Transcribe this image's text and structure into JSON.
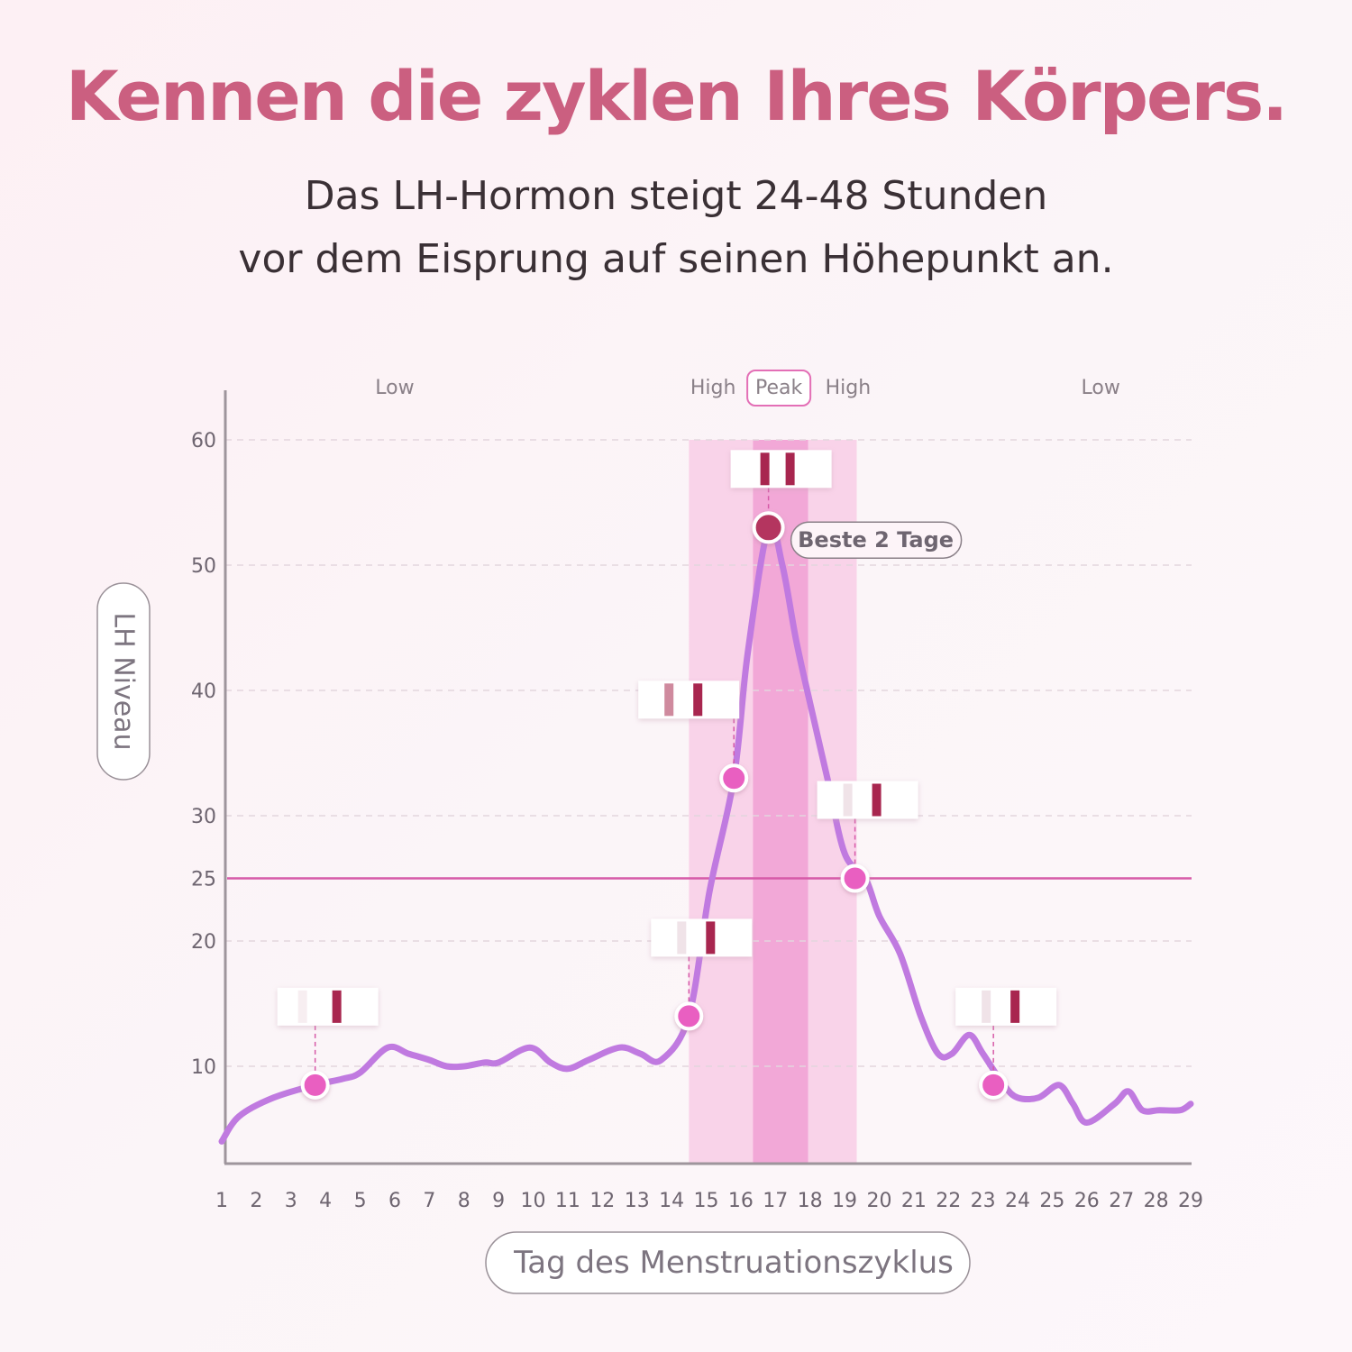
{
  "header": {
    "title": "Kennen die zyklen Ihres Körpers.",
    "subtitle_line1": "Das LH-Hormon steigt 24-48 Stunden",
    "subtitle_line2": "vor dem Eisprung auf seinen Höhepunkt an."
  },
  "chart_data": {
    "type": "line",
    "title": "",
    "xlabel": "Tag des Menstruationszyklus",
    "ylabel": "LH Niveau",
    "xlim": [
      1,
      29
    ],
    "ylim": [
      2,
      64
    ],
    "x_ticks": [
      1,
      2,
      3,
      4,
      5,
      6,
      7,
      8,
      9,
      10,
      11,
      12,
      13,
      14,
      15,
      16,
      17,
      18,
      19,
      20,
      21,
      22,
      23,
      24,
      25,
      26,
      27,
      28,
      29
    ],
    "y_ticks": [
      10,
      20,
      25,
      30,
      40,
      50,
      60
    ],
    "grid": true,
    "threshold": {
      "value": 25,
      "color": "#d65aa8"
    },
    "series": [
      {
        "color": "#c07ae0",
        "x": [
          1,
          1.5,
          2.5,
          3.7,
          4.5,
          5,
          5.8,
          6.4,
          7,
          7.5,
          8,
          8.6,
          9,
          9.9,
          10.5,
          11,
          11.6,
          12.5,
          13.1,
          13.7,
          14.5,
          15.1,
          15.8,
          16.2,
          16.8,
          17.2,
          17.6,
          18,
          18.5,
          19,
          19.6,
          20,
          20.6,
          21.2,
          21.7,
          22.1,
          22.6,
          23,
          23.6,
          24,
          24.6,
          25.2,
          25.6,
          26,
          26.8,
          27.2,
          27.6,
          28.1,
          28.7,
          29
        ],
        "y": [
          4,
          6,
          7.5,
          8.5,
          9,
          9.5,
          11.5,
          11,
          10.5,
          10,
          10,
          10.3,
          10.3,
          11.5,
          10.3,
          9.8,
          10.5,
          11.5,
          11,
          10.5,
          14,
          24,
          33,
          43,
          53,
          50,
          44,
          39,
          33,
          27,
          25,
          22,
          19,
          14,
          11,
          11,
          12.5,
          11,
          8.5,
          7.5,
          7.5,
          8.5,
          7,
          5.5,
          7,
          8,
          6.5,
          6.5,
          6.5,
          7
        ]
      }
    ],
    "points": [
      {
        "x": 3.7,
        "y": 8.5,
        "color": "#e95fc1",
        "strip": "one-line"
      },
      {
        "x": 14.5,
        "y": 14,
        "color": "#e95fc1",
        "strip": "faint-line"
      },
      {
        "x": 15.8,
        "y": 33,
        "color": "#e95fc1",
        "strip": "medium-line"
      },
      {
        "x": 16.8,
        "y": 53,
        "color": "#b4355e",
        "strip": "two-lines"
      },
      {
        "x": 19.3,
        "y": 25,
        "color": "#e95fc1",
        "strip": "faint-line"
      },
      {
        "x": 23.3,
        "y": 8.5,
        "color": "#e95fc1",
        "strip": "faint-line"
      }
    ],
    "bands": [
      {
        "from": 14.5,
        "to": 16.35,
        "color": "#f9d3e9"
      },
      {
        "from": 16.35,
        "to": 17.95,
        "color": "#f2a8d7"
      },
      {
        "from": 17.95,
        "to": 19.35,
        "color": "#f9d3e9"
      }
    ],
    "zones": [
      {
        "label": "Low",
        "x": 6
      },
      {
        "label": "High",
        "x": 15.2
      },
      {
        "label": "Peak",
        "x": 17.1,
        "boxed": true
      },
      {
        "label": "High",
        "x": 19.1
      },
      {
        "label": "Low",
        "x": 26.4
      }
    ],
    "annotation": {
      "label": "Beste 2 Tage",
      "x": 19.9,
      "y": 52
    }
  }
}
